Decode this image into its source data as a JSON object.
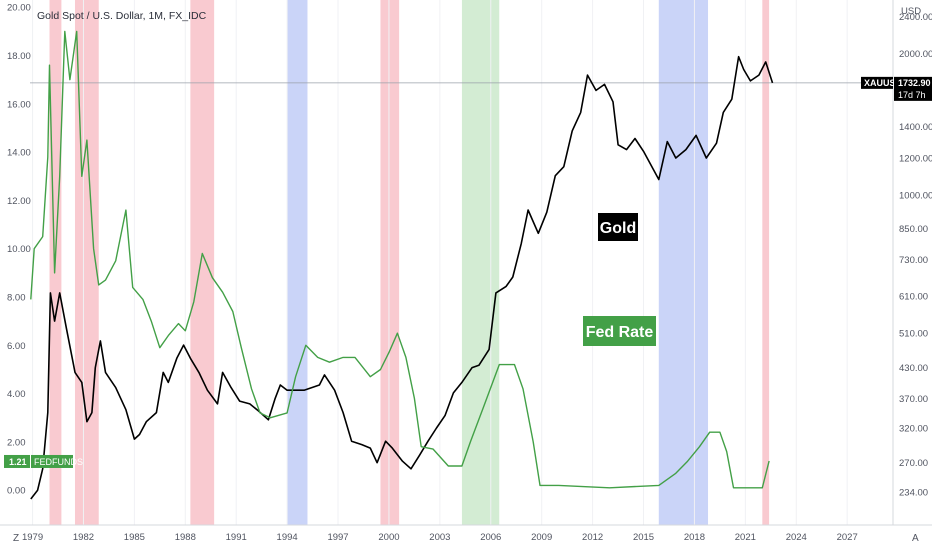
{
  "window": {
    "symbol_title": "Gold Spot / U.S. Dollar, 1M, FX_IDC",
    "corner_left": "Z",
    "corner_right": "A"
  },
  "chart_data": {
    "type": "line",
    "title": "Gold Spot / U.S. Dollar, 1M, FX_IDC",
    "x_tick_labels": [
      "1979",
      "1982",
      "1985",
      "1988",
      "1991",
      "1994",
      "1997",
      "2000",
      "2003",
      "2006",
      "2009",
      "2012",
      "2015",
      "2018",
      "2021",
      "2024",
      "2027"
    ],
    "x_range": [
      1978.85,
      2029.7
    ],
    "left_axis": {
      "series": "Fed Rate",
      "ticks": [
        "0.00",
        "2.00",
        "4.00",
        "6.00",
        "8.00",
        "10.00",
        "12.00",
        "14.00",
        "16.00",
        "18.00",
        "20.00"
      ],
      "range": [
        -1.4,
        20.3
      ]
    },
    "right_axis": {
      "unit_label": "USD",
      "scale": "log",
      "ticks": [
        "234.00",
        "270.00",
        "320.00",
        "370.00",
        "430.00",
        "510.00",
        "610.00",
        "730.00",
        "850.00",
        "1000.00",
        "1200.00",
        "1400.00",
        "2000.00",
        "2400.00"
      ],
      "range": [
        200,
        2600
      ]
    },
    "shaded_bands": [
      {
        "start": 1980.0,
        "end": 1980.7,
        "color": "#f7b8c0"
      },
      {
        "start": 1981.5,
        "end": 1982.9,
        "color": "#f7b8c0"
      },
      {
        "start": 1988.3,
        "end": 1989.7,
        "color": "#f7b8c0"
      },
      {
        "start": 1994.0,
        "end": 1995.2,
        "color": "#b8c6f6"
      },
      {
        "start": 1999.5,
        "end": 2000.6,
        "color": "#f7b8c0"
      },
      {
        "start": 2004.3,
        "end": 2006.5,
        "color": "#c4e6c4"
      },
      {
        "start": 2015.9,
        "end": 2018.8,
        "color": "#b8c6f6"
      },
      {
        "start": 2022.0,
        "end": 2022.4,
        "color": "#f7b8c0"
      }
    ],
    "series": [
      {
        "name": "XAUUSD",
        "axis": "right",
        "color": "#000000",
        "points": [
          [
            1978.9,
            226
          ],
          [
            1979.3,
            236
          ],
          [
            1979.6,
            262
          ],
          [
            1979.9,
            345
          ],
          [
            1980.05,
            620
          ],
          [
            1980.3,
            540
          ],
          [
            1980.6,
            620
          ],
          [
            1981.0,
            520
          ],
          [
            1981.5,
            420
          ],
          [
            1981.9,
            400
          ],
          [
            1982.2,
            330
          ],
          [
            1982.5,
            345
          ],
          [
            1982.7,
            430
          ],
          [
            1983.0,
            490
          ],
          [
            1983.3,
            420
          ],
          [
            1983.9,
            390
          ],
          [
            1984.5,
            350
          ],
          [
            1985.0,
            303
          ],
          [
            1985.3,
            310
          ],
          [
            1985.7,
            330
          ],
          [
            1986.3,
            345
          ],
          [
            1986.7,
            420
          ],
          [
            1987.0,
            400
          ],
          [
            1987.5,
            450
          ],
          [
            1987.9,
            480
          ],
          [
            1988.3,
            450
          ],
          [
            1988.8,
            420
          ],
          [
            1989.3,
            385
          ],
          [
            1989.9,
            360
          ],
          [
            1990.2,
            420
          ],
          [
            1990.7,
            390
          ],
          [
            1991.2,
            365
          ],
          [
            1991.8,
            360
          ],
          [
            1992.3,
            348
          ],
          [
            1992.9,
            333
          ],
          [
            1993.3,
            370
          ],
          [
            1993.6,
            395
          ],
          [
            1994.0,
            385
          ],
          [
            1995.0,
            385
          ],
          [
            1995.9,
            395
          ],
          [
            1996.2,
            415
          ],
          [
            1996.8,
            385
          ],
          [
            1997.3,
            345
          ],
          [
            1997.8,
            300
          ],
          [
            1998.4,
            295
          ],
          [
            1998.9,
            290
          ],
          [
            1999.3,
            270
          ],
          [
            1999.8,
            300
          ],
          [
            2000.2,
            290
          ],
          [
            2000.8,
            272
          ],
          [
            2001.3,
            262
          ],
          [
            2001.8,
            280
          ],
          [
            2002.3,
            300
          ],
          [
            2002.8,
            320
          ],
          [
            2003.3,
            340
          ],
          [
            2003.8,
            380
          ],
          [
            2004.3,
            400
          ],
          [
            2004.9,
            430
          ],
          [
            2005.3,
            435
          ],
          [
            2005.9,
            470
          ],
          [
            2006.3,
            620
          ],
          [
            2006.9,
            640
          ],
          [
            2007.3,
            670
          ],
          [
            2007.8,
            790
          ],
          [
            2008.2,
            930
          ],
          [
            2008.8,
            830
          ],
          [
            2009.3,
            920
          ],
          [
            2009.8,
            1100
          ],
          [
            2010.3,
            1150
          ],
          [
            2010.8,
            1370
          ],
          [
            2011.3,
            1500
          ],
          [
            2011.7,
            1800
          ],
          [
            2012.2,
            1670
          ],
          [
            2012.7,
            1720
          ],
          [
            2013.2,
            1580
          ],
          [
            2013.5,
            1280
          ],
          [
            2014.0,
            1250
          ],
          [
            2014.5,
            1320
          ],
          [
            2015.0,
            1240
          ],
          [
            2015.9,
            1080
          ],
          [
            2016.4,
            1300
          ],
          [
            2016.9,
            1200
          ],
          [
            2017.5,
            1250
          ],
          [
            2018.1,
            1340
          ],
          [
            2018.7,
            1200
          ],
          [
            2019.3,
            1290
          ],
          [
            2019.7,
            1500
          ],
          [
            2020.2,
            1600
          ],
          [
            2020.6,
            1970
          ],
          [
            2020.9,
            1850
          ],
          [
            2021.3,
            1750
          ],
          [
            2021.8,
            1800
          ],
          [
            2022.2,
            1920
          ],
          [
            2022.6,
            1733
          ]
        ]
      },
      {
        "name": "FEDFUNDS",
        "axis": "left",
        "color": "#43a047",
        "points": [
          [
            1978.9,
            7.9
          ],
          [
            1979.1,
            10.0
          ],
          [
            1979.6,
            10.5
          ],
          [
            1979.9,
            13.8
          ],
          [
            1980.0,
            17.6
          ],
          [
            1980.3,
            9.0
          ],
          [
            1980.6,
            13.0
          ],
          [
            1980.9,
            19.0
          ],
          [
            1981.2,
            17.0
          ],
          [
            1981.6,
            19.0
          ],
          [
            1981.9,
            13.0
          ],
          [
            1982.2,
            14.5
          ],
          [
            1982.6,
            10.0
          ],
          [
            1982.9,
            8.5
          ],
          [
            1983.3,
            8.7
          ],
          [
            1983.9,
            9.5
          ],
          [
            1984.5,
            11.6
          ],
          [
            1984.9,
            8.4
          ],
          [
            1985.5,
            7.9
          ],
          [
            1986.0,
            7.0
          ],
          [
            1986.5,
            5.9
          ],
          [
            1987.0,
            6.4
          ],
          [
            1987.6,
            6.9
          ],
          [
            1988.0,
            6.6
          ],
          [
            1988.5,
            7.8
          ],
          [
            1989.0,
            9.8
          ],
          [
            1989.6,
            8.8
          ],
          [
            1990.2,
            8.2
          ],
          [
            1990.8,
            7.4
          ],
          [
            1991.3,
            5.9
          ],
          [
            1991.9,
            4.2
          ],
          [
            1992.4,
            3.2
          ],
          [
            1993.0,
            3.0
          ],
          [
            1994.0,
            3.2
          ],
          [
            1994.5,
            4.7
          ],
          [
            1995.1,
            6.0
          ],
          [
            1995.8,
            5.5
          ],
          [
            1996.5,
            5.3
          ],
          [
            1997.3,
            5.5
          ],
          [
            1998.0,
            5.5
          ],
          [
            1998.9,
            4.7
          ],
          [
            1999.5,
            5.0
          ],
          [
            2000.0,
            5.7
          ],
          [
            2000.5,
            6.5
          ],
          [
            2001.0,
            5.5
          ],
          [
            2001.5,
            3.8
          ],
          [
            2001.9,
            1.8
          ],
          [
            2002.6,
            1.7
          ],
          [
            2003.5,
            1.0
          ],
          [
            2004.3,
            1.0
          ],
          [
            2004.8,
            2.0
          ],
          [
            2005.6,
            3.5
          ],
          [
            2006.5,
            5.2
          ],
          [
            2007.4,
            5.2
          ],
          [
            2007.9,
            4.2
          ],
          [
            2008.5,
            2.0
          ],
          [
            2008.9,
            0.2
          ],
          [
            2010.0,
            0.2
          ],
          [
            2013.0,
            0.1
          ],
          [
            2015.9,
            0.2
          ],
          [
            2016.9,
            0.7
          ],
          [
            2017.6,
            1.2
          ],
          [
            2018.3,
            1.8
          ],
          [
            2018.9,
            2.4
          ],
          [
            2019.5,
            2.4
          ],
          [
            2019.9,
            1.6
          ],
          [
            2020.3,
            0.1
          ],
          [
            2022.0,
            0.1
          ],
          [
            2022.4,
            1.21
          ]
        ]
      }
    ],
    "markers": {
      "gold_last_value": "1732.90",
      "gold_countdown": "17d 7h",
      "gold_symbol": "XAUUSD",
      "fed_last_value": "1.21",
      "fed_symbol": "FEDFUNDS"
    },
    "annotations": {
      "gold": "Gold",
      "fed": "Fed Rate"
    },
    "colors": {
      "gold_label_bg": "#000000",
      "fed_label_bg": "#43a047"
    }
  }
}
